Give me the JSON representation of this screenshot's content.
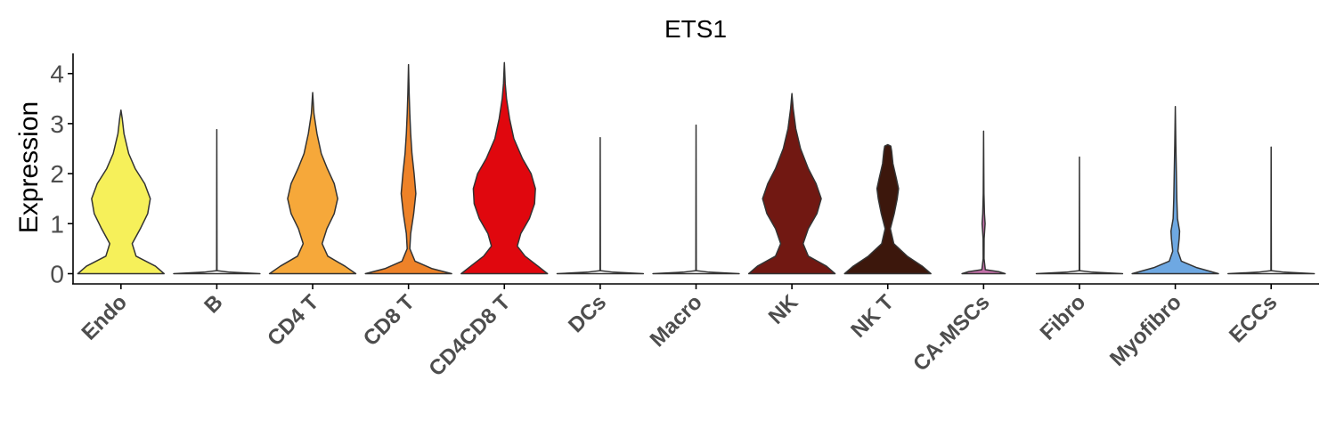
{
  "chart_data": {
    "type": "violin",
    "title": "ETS1",
    "xlabel": "",
    "ylabel": "Expression",
    "ylim": [
      -0.2,
      4.4
    ],
    "yticks": [
      "0",
      "1",
      "2",
      "3",
      "4"
    ],
    "grid": false,
    "legend": "none",
    "categories": [
      "Endo",
      "B",
      "CD4 T",
      "CD8 T",
      "CD4CD8 T",
      "DCs",
      "Macro",
      "NK",
      "NK T",
      "CA-MSCs",
      "Fibro",
      "Myofibro",
      "ECCs"
    ],
    "series": [
      {
        "category": "Endo",
        "color": "#F6F05A",
        "max": 3.27,
        "profile": [
          [
            0,
            1.0
          ],
          [
            0.15,
            0.8
          ],
          [
            0.35,
            0.35
          ],
          [
            0.6,
            0.26
          ],
          [
            0.9,
            0.45
          ],
          [
            1.2,
            0.62
          ],
          [
            1.5,
            0.68
          ],
          [
            1.8,
            0.55
          ],
          [
            2.1,
            0.33
          ],
          [
            2.4,
            0.18
          ],
          [
            2.8,
            0.07
          ],
          [
            3.1,
            0.03
          ],
          [
            3.27,
            0.0
          ]
        ]
      },
      {
        "category": "B",
        "color": "#FFFFFF",
        "max": 2.88,
        "profile": [
          [
            0,
            1.0
          ],
          [
            0.03,
            0.3
          ],
          [
            0.06,
            0.005
          ],
          [
            2.88,
            0.0
          ]
        ]
      },
      {
        "category": "CD4 T",
        "color": "#F6A83A",
        "max": 3.62,
        "profile": [
          [
            0,
            1.0
          ],
          [
            0.15,
            0.75
          ],
          [
            0.35,
            0.35
          ],
          [
            0.6,
            0.22
          ],
          [
            0.9,
            0.33
          ],
          [
            1.2,
            0.5
          ],
          [
            1.5,
            0.58
          ],
          [
            1.8,
            0.5
          ],
          [
            2.1,
            0.34
          ],
          [
            2.4,
            0.2
          ],
          [
            2.8,
            0.1
          ],
          [
            3.2,
            0.03
          ],
          [
            3.62,
            0.0
          ]
        ]
      },
      {
        "category": "CD8 T",
        "color": "#EE8228",
        "max": 4.18,
        "profile": [
          [
            0,
            1.0
          ],
          [
            0.1,
            0.55
          ],
          [
            0.25,
            0.15
          ],
          [
            0.5,
            0.03
          ],
          [
            0.8,
            0.05
          ],
          [
            1.2,
            0.12
          ],
          [
            1.6,
            0.17
          ],
          [
            2.0,
            0.13
          ],
          [
            2.4,
            0.08
          ],
          [
            2.8,
            0.05
          ],
          [
            3.2,
            0.03
          ],
          [
            3.6,
            0.015
          ],
          [
            4.18,
            0.0
          ]
        ]
      },
      {
        "category": "CD4CD8 T",
        "color": "#E0070E",
        "max": 4.22,
        "profile": [
          [
            0,
            1.0
          ],
          [
            0.15,
            0.78
          ],
          [
            0.35,
            0.48
          ],
          [
            0.55,
            0.3
          ],
          [
            0.8,
            0.38
          ],
          [
            1.1,
            0.58
          ],
          [
            1.4,
            0.7
          ],
          [
            1.7,
            0.72
          ],
          [
            2.0,
            0.62
          ],
          [
            2.3,
            0.42
          ],
          [
            2.7,
            0.22
          ],
          [
            3.1,
            0.12
          ],
          [
            3.5,
            0.05
          ],
          [
            3.8,
            0.02
          ],
          [
            4.22,
            0.0
          ]
        ]
      },
      {
        "category": "DCs",
        "color": "#FFFFFF",
        "max": 2.72,
        "profile": [
          [
            0,
            1.0
          ],
          [
            0.03,
            0.3
          ],
          [
            0.06,
            0.005
          ],
          [
            2.72,
            0.0
          ]
        ]
      },
      {
        "category": "Macro",
        "color": "#FFFFFF",
        "max": 2.97,
        "profile": [
          [
            0,
            1.0
          ],
          [
            0.03,
            0.3
          ],
          [
            0.06,
            0.005
          ],
          [
            2.97,
            0.0
          ]
        ]
      },
      {
        "category": "NK",
        "color": "#711812",
        "max": 3.6,
        "profile": [
          [
            0,
            1.0
          ],
          [
            0.15,
            0.8
          ],
          [
            0.35,
            0.38
          ],
          [
            0.6,
            0.26
          ],
          [
            0.9,
            0.38
          ],
          [
            1.2,
            0.58
          ],
          [
            1.5,
            0.68
          ],
          [
            1.8,
            0.56
          ],
          [
            2.1,
            0.38
          ],
          [
            2.5,
            0.2
          ],
          [
            2.9,
            0.09
          ],
          [
            3.3,
            0.03
          ],
          [
            3.6,
            0.0
          ]
        ]
      },
      {
        "category": "NK T",
        "color": "#3C170C",
        "max": 2.58,
        "profile": [
          [
            0,
            1.0
          ],
          [
            0.15,
            0.8
          ],
          [
            0.35,
            0.45
          ],
          [
            0.6,
            0.14
          ],
          [
            0.9,
            0.06
          ],
          [
            1.2,
            0.15
          ],
          [
            1.5,
            0.22
          ],
          [
            1.7,
            0.25
          ],
          [
            1.9,
            0.2
          ],
          [
            2.2,
            0.12
          ],
          [
            2.45,
            0.09
          ],
          [
            2.55,
            0.07
          ],
          [
            2.58,
            0.0
          ]
        ]
      },
      {
        "category": "CA-MSCs",
        "color": "#C26FA8",
        "max": 2.85,
        "profile": [
          [
            0,
            0.5
          ],
          [
            0.04,
            0.35
          ],
          [
            0.08,
            0.04
          ],
          [
            0.3,
            0.01
          ],
          [
            0.7,
            0.012
          ],
          [
            1.0,
            0.035
          ],
          [
            1.2,
            0.02
          ],
          [
            1.6,
            0.008
          ],
          [
            2.85,
            0.0
          ]
        ]
      },
      {
        "category": "Fibro",
        "color": "#FFFFFF",
        "max": 2.33,
        "profile": [
          [
            0,
            1.0
          ],
          [
            0.03,
            0.3
          ],
          [
            0.06,
            0.005
          ],
          [
            2.33,
            0.0
          ]
        ]
      },
      {
        "category": "Myofibro",
        "color": "#6EA8E2",
        "max": 3.34,
        "profile": [
          [
            0,
            1.0
          ],
          [
            0.12,
            0.5
          ],
          [
            0.25,
            0.14
          ],
          [
            0.45,
            0.06
          ],
          [
            0.7,
            0.09
          ],
          [
            0.85,
            0.1
          ],
          [
            1.1,
            0.05
          ],
          [
            1.5,
            0.035
          ],
          [
            2.0,
            0.025
          ],
          [
            2.6,
            0.012
          ],
          [
            3.34,
            0.0
          ]
        ]
      },
      {
        "category": "ECCs",
        "color": "#FFFFFF",
        "max": 2.53,
        "profile": [
          [
            0,
            1.0
          ],
          [
            0.03,
            0.3
          ],
          [
            0.06,
            0.005
          ],
          [
            2.53,
            0.0
          ]
        ]
      }
    ]
  }
}
